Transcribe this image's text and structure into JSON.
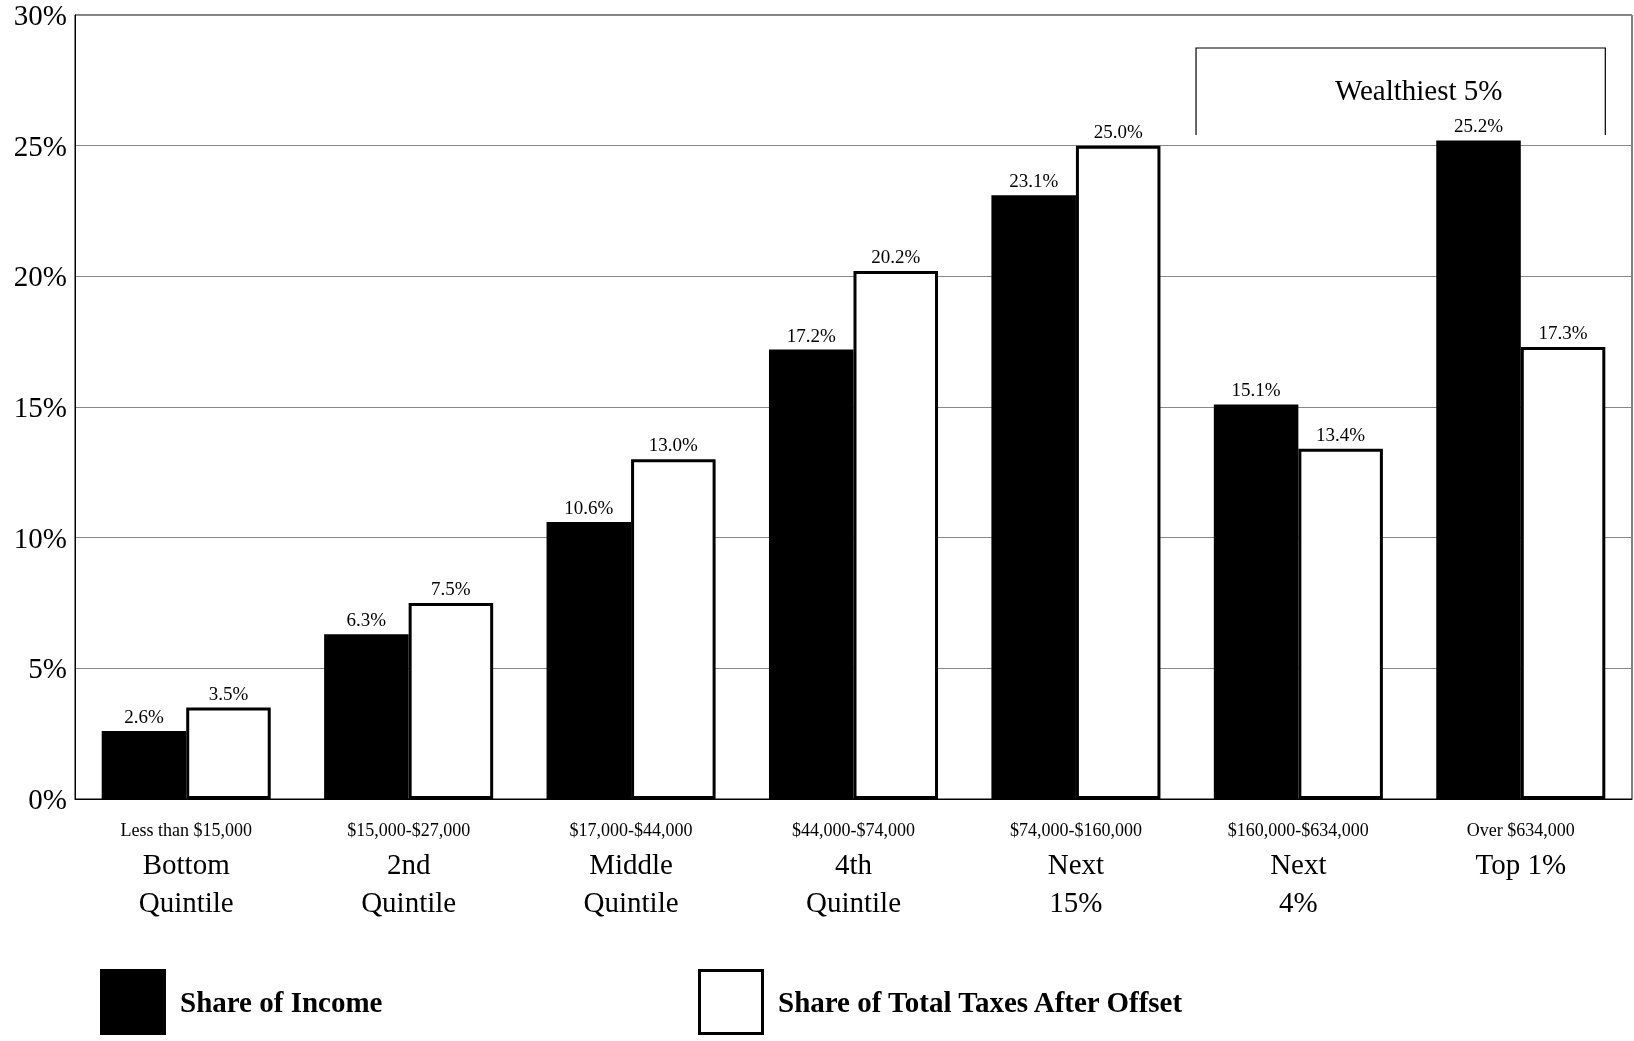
{
  "chart_data": {
    "type": "bar",
    "categories": [
      "Less than $15,000\nBottom\nQuintile",
      "$15,000-$27,000\n2nd\nQuintile",
      "$17,000-$44,000\nMiddle\nQuintile",
      "$44,000-$74,000\n4th\nQuintile",
      "$74,000-$160,000\nNext\n15%",
      "$160,000-$634,000\nNext\n4%",
      "Over $634,000\nTop 1%"
    ],
    "series": [
      {
        "name": "Share of Income",
        "color": "#000000",
        "values": [
          2.6,
          6.3,
          10.6,
          17.2,
          23.1,
          15.1,
          25.2
        ],
        "value_labels": [
          "2.6%",
          "6.3%",
          "10.6%",
          "17.2%",
          "23.1%",
          "15.1%",
          "25.2%"
        ]
      },
      {
        "name": "Share of Total Taxes After Offset",
        "color": "#ffffff",
        "values": [
          3.5,
          7.5,
          13.0,
          20.2,
          25.0,
          13.4,
          17.3
        ],
        "value_labels": [
          "3.5%",
          "7.5%",
          "13.0%",
          "20.2%",
          "25.0%",
          "13.4%",
          "17.3%"
        ]
      }
    ],
    "ylim": [
      0,
      30
    ],
    "yticks": [
      {
        "value": 0,
        "label": "0%"
      },
      {
        "value": 5,
        "label": "5%"
      },
      {
        "value": 10,
        "label": "10%"
      },
      {
        "value": 15,
        "label": "15%"
      },
      {
        "value": 20,
        "label": "20%"
      },
      {
        "value": 25,
        "label": "25%"
      },
      {
        "value": 30,
        "label": "30%"
      }
    ],
    "grid": "y",
    "legend": "bottom",
    "annotations": [
      "Wealthiest 5%"
    ]
  }
}
